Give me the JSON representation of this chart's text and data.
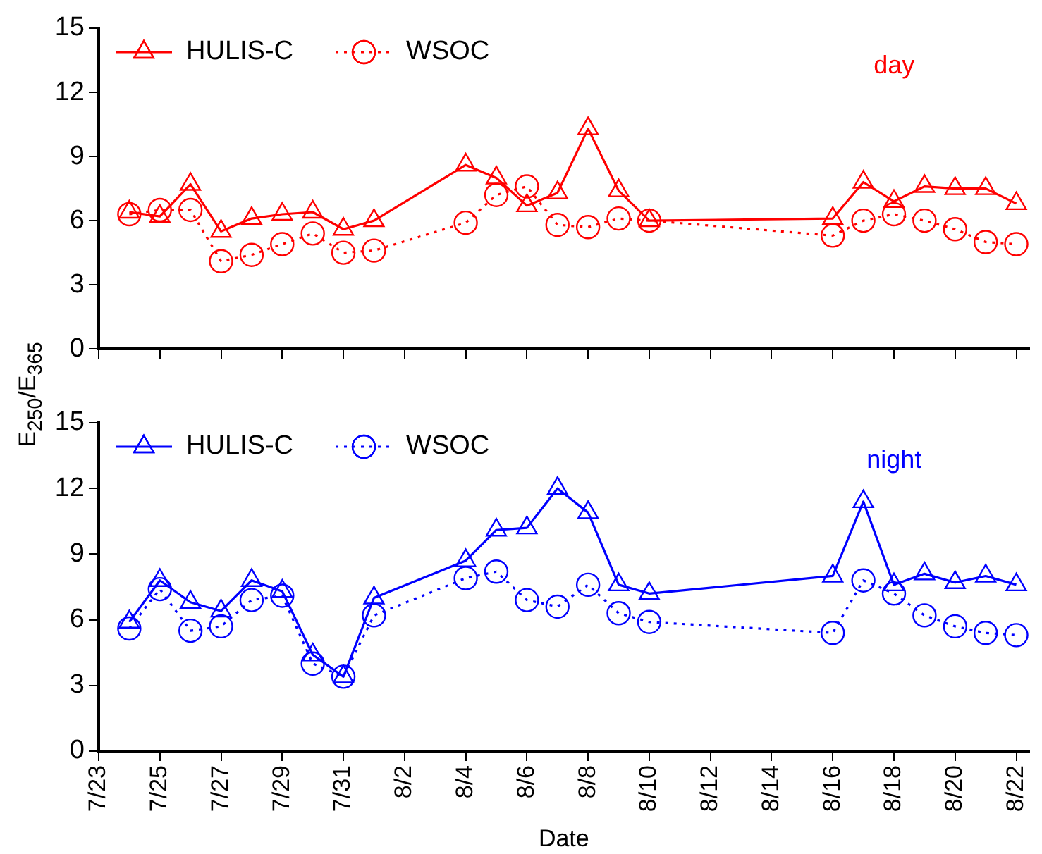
{
  "chart_data": [
    {
      "type": "line",
      "ylabel": "E$_{250}$/E$_{365}$",
      "annotations": [
        "day"
      ],
      "legend": "top left",
      "grid": false,
      "tick_labels": "y",
      "x": [
        "--07-24",
        "--07-25",
        "--07-26",
        "--07-27",
        "--07-28",
        "--07-29",
        "--07-30",
        "--07-31",
        "--08-01",
        "--08-04",
        "--08-05",
        "--08-06",
        "--08-07",
        "--08-08",
        "--08-09",
        "--08-10",
        "--08-16",
        "--08-17",
        "--08-18",
        "--08-19",
        "--08-20",
        "--08-21",
        "--08-22"
      ],
      "xlim": [
        "--07-23",
        "--08-22T10:00"
      ],
      "xticks": [
        {
          "value": "--07-23",
          "label": null
        },
        {
          "value": "--07-25",
          "label": null
        },
        {
          "value": "--07-27",
          "label": null
        },
        {
          "value": "--07-29",
          "label": null
        },
        {
          "value": "--07-31",
          "label": null
        },
        {
          "value": "--08-02",
          "label": null
        },
        {
          "value": "--08-04",
          "label": null
        },
        {
          "value": "--08-06",
          "label": null
        },
        {
          "value": "--08-08",
          "label": null
        },
        {
          "value": "--08-10",
          "label": null
        },
        {
          "value": "--08-12",
          "label": null
        },
        {
          "value": "--08-14",
          "label": null
        },
        {
          "value": "--08-16",
          "label": null
        },
        {
          "value": "--08-18",
          "label": null
        },
        {
          "value": "--08-20",
          "label": null
        },
        {
          "value": "--08-22",
          "label": null
        }
      ],
      "ylim": [
        0,
        15
      ],
      "yticks": [
        0,
        3,
        6,
        9,
        12,
        15
      ],
      "series": [
        {
          "name": "HULIS-C",
          "color": "#ff0000",
          "marker": "triangle",
          "line_style": "solid",
          "values": [
            6.4,
            6.2,
            7.7,
            5.5,
            6.1,
            6.3,
            6.4,
            5.6,
            6.0,
            8.6,
            8.0,
            6.7,
            7.3,
            10.3,
            7.4,
            6.0,
            6.1,
            7.8,
            6.9,
            7.6,
            7.5,
            7.5,
            6.8
          ]
        },
        {
          "name": "WSOC",
          "color": "#ff0000",
          "marker": "circle",
          "line_style": "dotted",
          "values": [
            6.3,
            6.5,
            6.5,
            4.1,
            4.4,
            4.9,
            5.4,
            4.5,
            4.6,
            5.9,
            7.2,
            7.6,
            5.8,
            5.7,
            6.1,
            6.0,
            5.3,
            6.0,
            6.3,
            6.0,
            5.6,
            5.0,
            4.9
          ]
        }
      ]
    },
    {
      "type": "line",
      "xlabel": "Date",
      "annotations": [
        "night"
      ],
      "legend": "top left",
      "grid": false,
      "x": [
        "--07-24",
        "--07-25",
        "--07-26",
        "--07-27",
        "--07-28",
        "--07-29",
        "--07-30",
        "--07-31",
        "--08-01",
        "--08-04",
        "--08-05",
        "--08-06",
        "--08-07",
        "--08-08",
        "--08-09",
        "--08-10",
        "--08-16",
        "--08-17",
        "--08-18",
        "--08-19",
        "--08-20",
        "--08-21",
        "--08-22"
      ],
      "xlim": [
        "--07-23",
        "--08-22T10:00"
      ],
      "xticks": [
        {
          "value": "--07-23",
          "label": "7/23"
        },
        {
          "value": "--07-25",
          "label": "7/25"
        },
        {
          "value": "--07-27",
          "label": "7/27"
        },
        {
          "value": "--07-29",
          "label": "7/29"
        },
        {
          "value": "--07-31",
          "label": "7/31"
        },
        {
          "value": "--08-02",
          "label": "8/2"
        },
        {
          "value": "--08-04",
          "label": "8/4"
        },
        {
          "value": "--08-06",
          "label": "8/6"
        },
        {
          "value": "--08-08",
          "label": "8/8"
        },
        {
          "value": "--08-10",
          "label": "8/10"
        },
        {
          "value": "--08-12",
          "label": "8/12"
        },
        {
          "value": "--08-14",
          "label": "8/14"
        },
        {
          "value": "--08-16",
          "label": "8/16"
        },
        {
          "value": "--08-18",
          "label": "8/18"
        },
        {
          "value": "--08-20",
          "label": "8/20"
        },
        {
          "value": "--08-22",
          "label": "8/22"
        }
      ],
      "ylim": [
        0,
        15
      ],
      "yticks": [
        0,
        3,
        6,
        9,
        12,
        15
      ],
      "series": [
        {
          "name": "HULIS-C",
          "color": "#0000ff",
          "marker": "triangle",
          "line_style": "solid",
          "values": [
            5.9,
            7.8,
            6.8,
            6.4,
            7.8,
            7.3,
            4.4,
            3.4,
            7.0,
            8.7,
            10.1,
            10.2,
            12.0,
            10.9,
            7.6,
            7.2,
            8.0,
            11.4,
            7.6,
            8.1,
            7.7,
            8.0,
            7.6
          ]
        },
        {
          "name": "WSOC",
          "color": "#0000ff",
          "marker": "circle",
          "line_style": "dotted",
          "values": [
            5.6,
            7.4,
            5.5,
            5.7,
            6.9,
            7.1,
            4.0,
            3.4,
            6.2,
            7.9,
            8.2,
            6.9,
            6.6,
            7.6,
            6.3,
            5.9,
            5.4,
            7.8,
            7.2,
            6.2,
            5.7,
            5.4,
            5.3
          ]
        }
      ]
    }
  ]
}
